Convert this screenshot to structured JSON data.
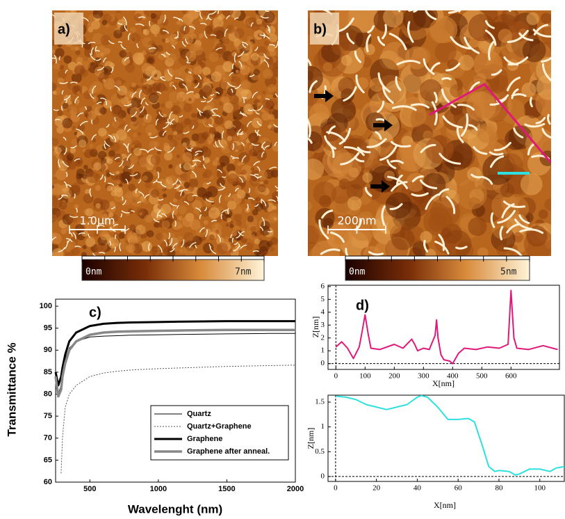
{
  "figures": [
    {
      "label": "a)",
      "scale_bar": "1.0μm",
      "colorbar": {
        "min": "0nm",
        "max": "7nm"
      }
    },
    {
      "label": "b)",
      "scale_bar": "200nm",
      "colorbar": {
        "min": "0nm",
        "max": "5nm"
      }
    }
  ],
  "chart_data": [
    {
      "type": "line",
      "annotation": "c)",
      "x_label": "Wavelenght (nm)",
      "y_label": "Transmittance %",
      "x": [
        250,
        270,
        290,
        300,
        320,
        350,
        400,
        500,
        600,
        700,
        800,
        1000,
        1200,
        1500,
        1800,
        2000
      ],
      "series": [
        {
          "name": "Quartz",
          "color": "#000000",
          "values": [
            84,
            80,
            82,
            85,
            88,
            90.5,
            92,
            93,
            93.2,
            93.3,
            93.4,
            93.5,
            93.6,
            93.7,
            93.8,
            93.8
          ]
        },
        {
          "name": "Quartz+Graphene",
          "color": "#555555",
          "values": [
            null,
            null,
            62,
            70,
            77,
            80,
            82,
            84,
            84.8,
            85.2,
            85.5,
            85.8,
            86,
            86.3,
            86.5,
            86.6
          ]
        },
        {
          "name": "Graphene",
          "color": "#000000",
          "values": [
            85,
            82,
            84,
            86,
            89,
            92,
            94,
            95.5,
            96,
            96.2,
            96.3,
            96.4,
            96.5,
            96.6,
            96.6,
            96.6
          ]
        },
        {
          "name": "Graphene after anneal.",
          "color": "#888888",
          "values": [
            84,
            79.5,
            81,
            84,
            87,
            90,
            92,
            93.5,
            94,
            94.2,
            94.3,
            94.4,
            94.5,
            94.6,
            94.6,
            94.6
          ]
        }
      ],
      "xlim": [
        250,
        2000
      ],
      "ylim": [
        60,
        101.6
      ],
      "xticks": [
        500,
        1000,
        1500,
        2000
      ],
      "yticks": [
        60,
        65,
        70,
        75,
        80,
        85,
        90,
        95,
        100
      ],
      "legend": "lower right"
    },
    {
      "type": "line",
      "annotation": "d)",
      "x_label": "X[nm]",
      "y_label": "Z[nm]",
      "color": "#e0187a",
      "x": [
        0,
        20,
        40,
        60,
        80,
        90,
        100,
        110,
        120,
        150,
        200,
        230,
        260,
        270,
        280,
        300,
        320,
        340,
        345,
        350,
        360,
        370,
        390,
        400,
        420,
        440,
        480,
        520,
        560,
        590,
        600,
        610,
        620,
        660,
        710,
        760
      ],
      "values": [
        1.3,
        1.7,
        1.2,
        0.4,
        1.3,
        2.5,
        3.8,
        2.4,
        1.2,
        1.1,
        1.5,
        1.2,
        1.9,
        1.5,
        1.0,
        1.2,
        1.1,
        2.2,
        3.4,
        2.0,
        0.7,
        0.3,
        0.2,
        0.0,
        0.8,
        1.2,
        1.1,
        1.3,
        1.2,
        1.5,
        5.7,
        2.0,
        1.2,
        1.1,
        1.4,
        1.1
      ],
      "xlim": [
        -27,
        766
      ],
      "ylim": [
        -0.45,
        6.1
      ],
      "xticks": [
        0,
        100,
        200,
        300,
        400,
        500,
        600
      ],
      "yticks": [
        0,
        1,
        2,
        3,
        4,
        5,
        6
      ]
    },
    {
      "type": "line",
      "x_label": "X[nm]",
      "y_label": "Z[nm]",
      "color": "#2ee0e0",
      "x": [
        0,
        5,
        10,
        15,
        20,
        25,
        30,
        35,
        40,
        42,
        45,
        50,
        55,
        60,
        65,
        68,
        72,
        75,
        78,
        80,
        85,
        88,
        90,
        95,
        100,
        105,
        108,
        112
      ],
      "values": [
        1.62,
        1.6,
        1.55,
        1.45,
        1.4,
        1.35,
        1.4,
        1.45,
        1.6,
        1.63,
        1.6,
        1.4,
        1.15,
        1.15,
        1.17,
        1.1,
        0.6,
        0.2,
        0.1,
        0.12,
        0.1,
        0.03,
        0.05,
        0.15,
        0.15,
        0.1,
        0.17,
        0.2
      ],
      "xlim": [
        -3.7,
        112
      ],
      "ylim": [
        -0.1,
        1.64
      ],
      "xticks": [
        0,
        20,
        40,
        60,
        80,
        100
      ],
      "yticks": [
        0,
        0.5,
        1,
        1.5
      ]
    }
  ]
}
